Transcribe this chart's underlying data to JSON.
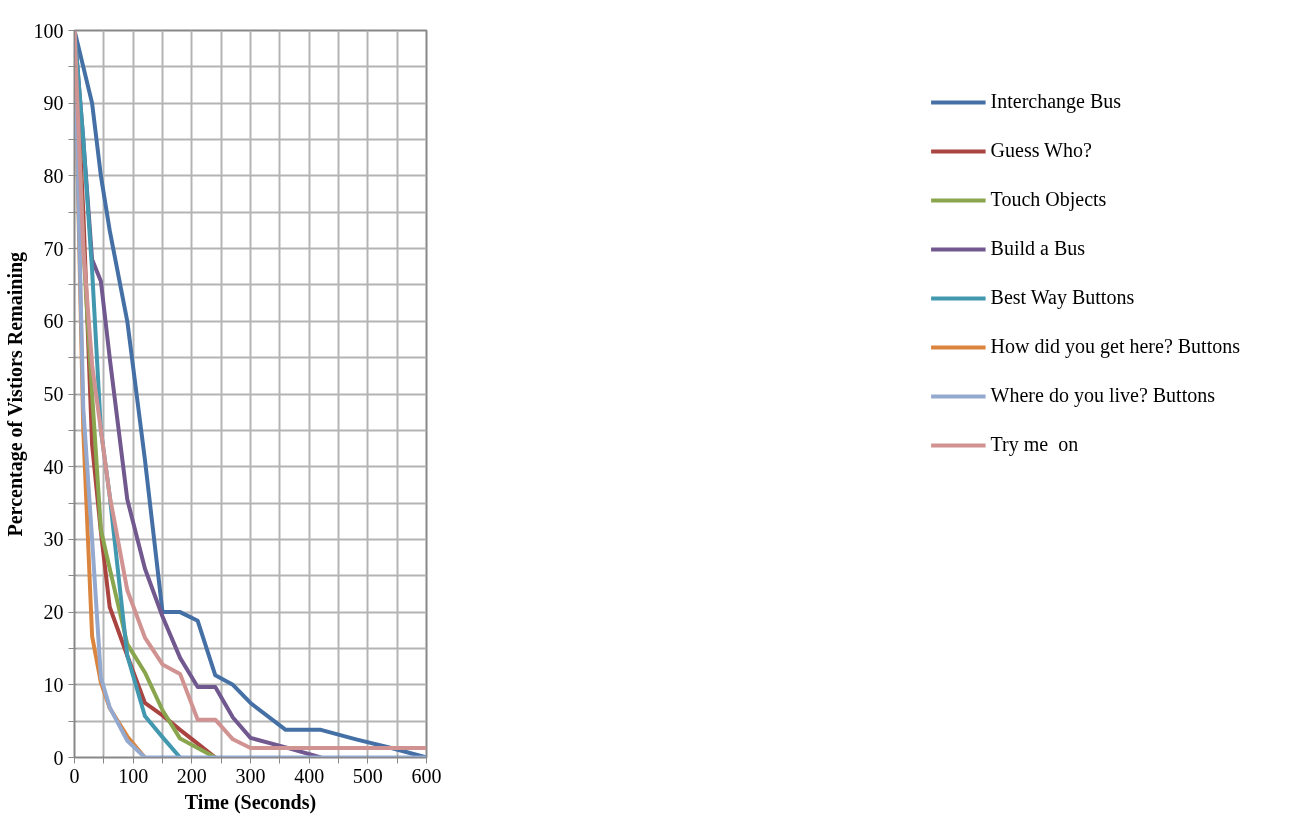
{
  "chart_data": {
    "type": "line",
    "xlabel": "Time (Seconds)",
    "ylabel": "Percentage of Vistiors Remaining",
    "x": [
      0,
      15,
      30,
      45,
      60,
      90,
      120,
      150,
      180,
      210,
      240,
      270,
      300,
      360,
      420,
      480,
      540,
      600
    ],
    "series": [
      {
        "name": "Interchange Bus",
        "color": "#4470a6",
        "values": [
          100,
          95,
          90,
          80,
          72.5,
          60,
          41,
          20,
          20,
          18.8,
          11.3,
          10,
          7.5,
          3.8,
          3.8,
          2.5,
          1.3,
          0
        ]
      },
      {
        "name": "Guess Who?",
        "color": "#aa4441",
        "values": [
          100,
          75,
          43,
          31,
          20.7,
          14,
          7.5,
          5.8,
          3.8,
          1.9,
          0,
          null,
          null,
          null,
          null,
          null,
          null,
          null
        ]
      },
      {
        "name": "Touch Objects",
        "color": "#89a54e",
        "values": [
          100,
          70,
          50,
          31.3,
          26,
          15.6,
          11.7,
          6.5,
          2.6,
          1.3,
          0,
          null,
          null,
          null,
          null,
          null,
          null,
          null
        ]
      },
      {
        "name": "Build a Bus",
        "color": "#71588f",
        "values": [
          100,
          85,
          68.5,
          65.5,
          55,
          35.5,
          26,
          19.4,
          13.7,
          9.7,
          9.7,
          5.5,
          2.7,
          1.4,
          0,
          null,
          null,
          null
        ]
      },
      {
        "name": "Best Way Buttons",
        "color": "#4198af",
        "values": [
          100,
          85,
          67,
          45,
          36,
          14,
          5.7,
          2.8,
          0,
          null,
          null,
          null,
          null,
          null,
          null,
          null,
          null,
          null
        ]
      },
      {
        "name": "How did you get here? Buttons",
        "color": "#db843d",
        "values": [
          100,
          45,
          16.7,
          10.3,
          6.8,
          2.9,
          0,
          null,
          null,
          null,
          null,
          null,
          null,
          null,
          null,
          null,
          null,
          null
        ]
      },
      {
        "name": "Where do you live? Buttons",
        "color": "#93a9cf",
        "values": [
          100,
          48,
          30,
          11,
          6.9,
          2.3,
          0,
          0,
          0,
          0,
          0,
          0,
          0,
          0,
          0,
          0,
          0,
          0
        ]
      },
      {
        "name": "Try me  on",
        "color": "#d19392",
        "values": [
          100,
          70,
          54,
          45,
          36,
          23,
          16.5,
          12.8,
          11.5,
          5.2,
          5.2,
          2.5,
          1.3,
          1.3,
          1.3,
          1.3,
          1.3,
          1.3
        ]
      }
    ],
    "xlim": [
      0,
      600
    ],
    "ylim": [
      0,
      100
    ],
    "xticks": [
      0,
      {
        "value": 50,
        "label": null
      },
      100,
      {
        "value": 150,
        "label": null
      },
      200,
      {
        "value": 250,
        "label": null
      },
      300,
      {
        "value": 350,
        "label": null
      },
      400,
      {
        "value": 450,
        "label": null
      },
      500,
      {
        "value": 550,
        "label": null
      },
      600
    ],
    "yticks": [
      0,
      {
        "value": 5,
        "label": null
      },
      10,
      {
        "value": 15,
        "label": null
      },
      20,
      {
        "value": 25,
        "label": null
      },
      30,
      {
        "value": 35,
        "label": null
      },
      40,
      {
        "value": 45,
        "label": null
      },
      50,
      {
        "value": 55,
        "label": null
      },
      60,
      {
        "value": 65,
        "label": null
      },
      70,
      {
        "value": 75,
        "label": null
      },
      80,
      {
        "value": 85,
        "label": null
      },
      90,
      {
        "value": 95,
        "label": null
      },
      100
    ],
    "grid": true,
    "legend": "right",
    "marker": "none",
    "line_style": "solid"
  }
}
